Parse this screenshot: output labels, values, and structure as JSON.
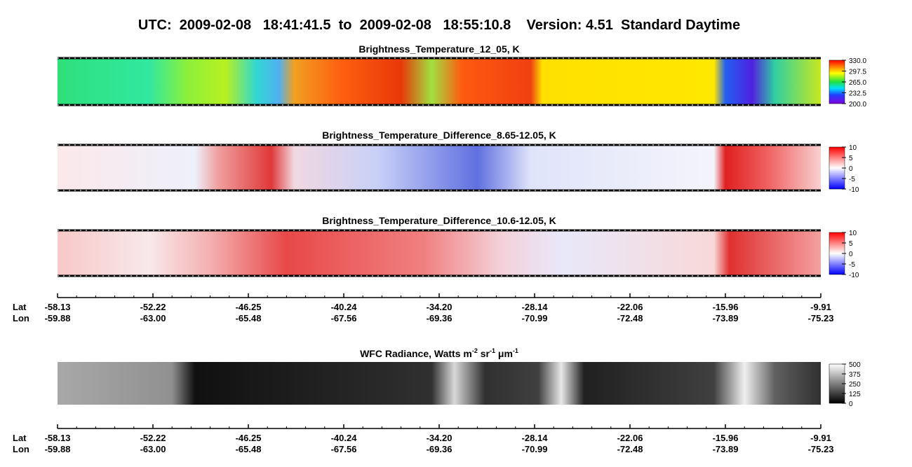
{
  "title": "UTC:  2009-02-08   18:41:41.5  to  2009-02-08   18:55:10.8    Version: 4.51  Standard Daytime",
  "panels": [
    {
      "title": [
        {
          "text": "Brightness_Temperature_12_05, K"
        }
      ],
      "colorbar": {
        "range": [
          200,
          330
        ],
        "ticks": [
          {
            "value": 330,
            "label": "330.0"
          },
          {
            "value": 297.5,
            "label": "297.5"
          },
          {
            "value": 265,
            "label": "265.0"
          },
          {
            "value": 232.5,
            "label": "232.5"
          },
          {
            "value": 200,
            "label": "200.0"
          }
        ]
      }
    },
    {
      "title": [
        {
          "text": "Brightness_Temperature_Difference_8.65-12.05, K"
        }
      ],
      "colorbar": {
        "range": [
          -10,
          10
        ],
        "ticks": [
          10,
          5,
          0,
          -5,
          -10
        ]
      }
    },
    {
      "title": [
        {
          "text": "Brightness_Temperature_Difference_10.6-12.05, K"
        }
      ],
      "colorbar": {
        "range": [
          -10,
          10
        ],
        "ticks": [
          10,
          5,
          0,
          -5,
          -10
        ]
      }
    },
    {
      "title": [
        {
          "text": "WFC Radiance, Watts m"
        },
        {
          "text": "-2",
          "sup": true
        },
        {
          "text": " sr"
        },
        {
          "text": "-1",
          "sup": true
        },
        {
          "text": " μm"
        },
        {
          "text": "-1",
          "sup": true
        }
      ],
      "colorbar": {
        "range": [
          0,
          500
        ],
        "ticks": [
          500,
          375,
          250,
          125,
          0
        ]
      }
    }
  ],
  "axes": [
    {
      "lat_label": "Lat",
      "lon_label": "Lon",
      "lat": [
        "-58.13",
        "-52.22",
        "-46.25",
        "-40.24",
        "-34.20",
        "-28.14",
        "-22.06",
        "-15.96",
        "-9.91"
      ],
      "lon": [
        "-59.88",
        "-63.00",
        "-65.48",
        "-67.56",
        "-69.36",
        "-70.99",
        "-72.48",
        "-73.89",
        "-75.23"
      ]
    },
    {
      "lat_label": "Lat",
      "lon_label": "Lon",
      "lat": [
        "-58.13",
        "-52.22",
        "-46.25",
        "-40.24",
        "-34.20",
        "-28.14",
        "-22.06",
        "-15.96",
        "-9.91"
      ],
      "lon": [
        "-59.88",
        "-63.00",
        "-65.48",
        "-67.56",
        "-69.36",
        "-70.99",
        "-72.48",
        "-73.89",
        "-75.23"
      ]
    }
  ]
}
